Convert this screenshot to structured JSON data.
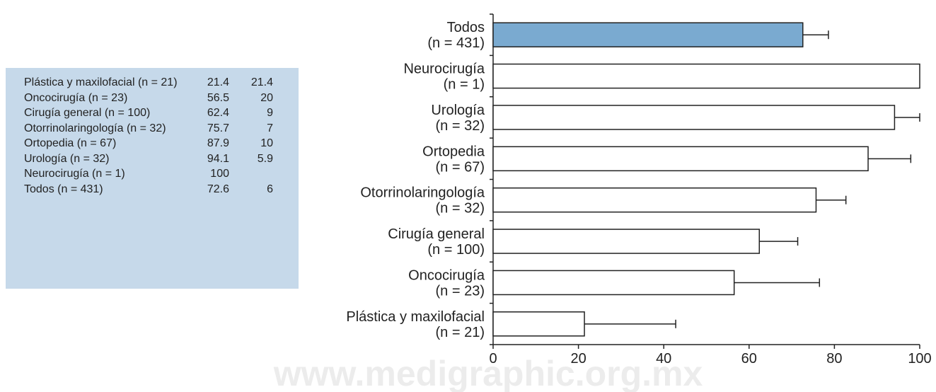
{
  "table": {
    "rows": [
      [
        "Plástica y maxilofacial (n = 21)",
        "21.4",
        "21.4"
      ],
      [
        "Oncocirugía (n = 23)",
        "56.5",
        "20"
      ],
      [
        "Cirugía general (n = 100)",
        "62.4",
        "9"
      ],
      [
        "Otorrinolaringología (n = 32)",
        "75.7",
        "7"
      ],
      [
        "Ortopedia (n = 67)",
        "87.9",
        "10"
      ],
      [
        "Urología (n = 32)",
        "94.1",
        "5.9"
      ],
      [
        "Neurocirugía (n = 1)",
        "100"
      ],
      [
        "Todos (n = 431)",
        "72.6",
        "6"
      ]
    ]
  },
  "chart_data": {
    "type": "hbar",
    "categories": [
      [
        "Todos",
        "(n = 431)"
      ],
      [
        "Neurocirugía",
        "(n = 1)"
      ],
      [
        "Urología",
        "(n = 32)"
      ],
      [
        "Ortopedia",
        "(n = 67)"
      ],
      [
        "Otorrinolaringología",
        "(n = 32)"
      ],
      [
        "Cirugía general",
        "(n = 100)"
      ],
      [
        "Oncocirugía",
        "(n = 23)"
      ],
      [
        "Plástica y maxilofacial",
        "(n = 21)"
      ]
    ],
    "values": [
      72.6,
      100,
      94.1,
      87.9,
      75.7,
      62.4,
      56.5,
      21.4
    ],
    "errors": [
      6,
      null,
      5.9,
      10,
      7,
      9,
      20,
      21.4
    ],
    "colors": [
      "#7aaad0",
      "#ffffff",
      "#ffffff",
      "#ffffff",
      "#ffffff",
      "#ffffff",
      "#ffffff",
      "#ffffff"
    ],
    "xlim": [
      0,
      100
    ],
    "xticks": [
      0,
      20,
      40,
      60,
      80,
      100
    ]
  },
  "watermark": "www.medigraphic.org.mx"
}
